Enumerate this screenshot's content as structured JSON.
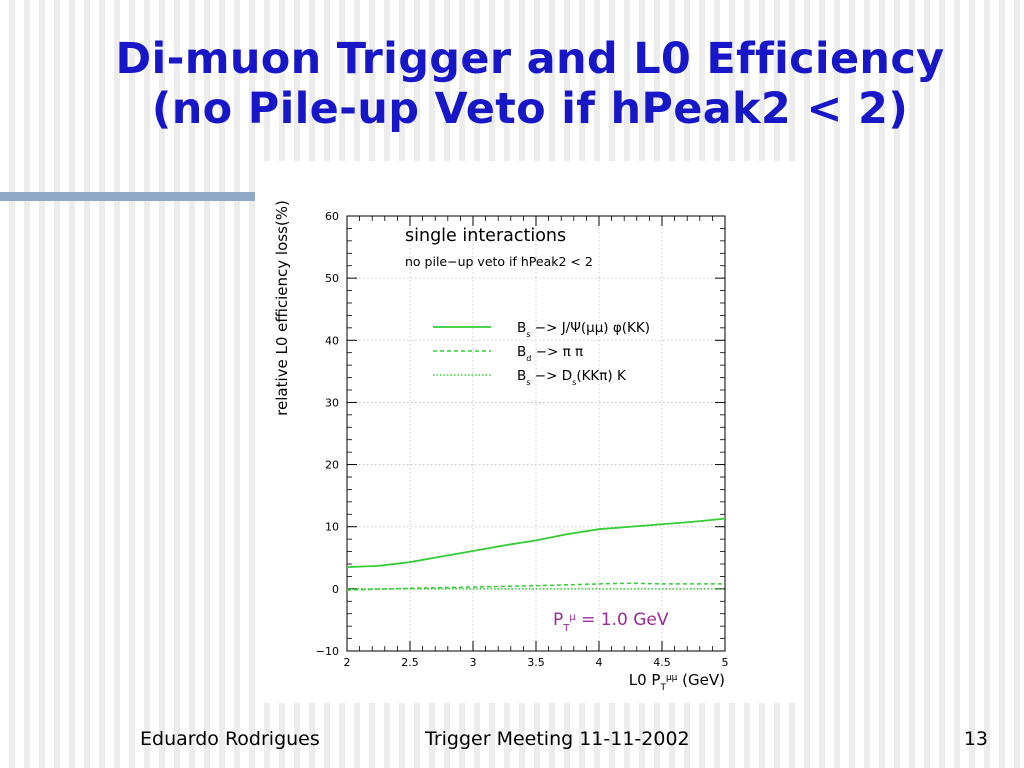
{
  "slide": {
    "title_line1": "Di-muon Trigger and L0 Efficiency",
    "title_line2": "(no Pile-up Veto if hPeak2 < 2)",
    "accent_color": "#1717c8",
    "rule_color": "#8fa8c6"
  },
  "footer": {
    "author": "Eduardo Rodrigues",
    "meeting": "Trigger Meeting 11-11-2002",
    "page": "13"
  },
  "chart_data": {
    "type": "line",
    "title": "single interactions",
    "subtitle": "no pile−up veto if hPeak2 < 2",
    "xlabel": "L0 P_T^μμ (GeV)",
    "ylabel": "relative L0 efficiency loss(%)",
    "annotation": "P_T^μ = 1.0 GeV",
    "annotation_color": "#9a2a9a",
    "xlim": [
      2,
      5
    ],
    "ylim": [
      -10,
      60
    ],
    "x_ticks": [
      2,
      2.5,
      3,
      3.5,
      4,
      4.5,
      5
    ],
    "x_tick_labels": [
      "2",
      "2.5",
      "3",
      "3.5",
      "4",
      "4.5",
      "5"
    ],
    "y_ticks": [
      -10,
      0,
      10,
      20,
      30,
      40,
      50,
      60
    ],
    "y_tick_labels": [
      "−10",
      "0",
      "10",
      "20",
      "30",
      "40",
      "50",
      "60"
    ],
    "grid": true,
    "legend_position": "upper-right",
    "series": [
      {
        "name": "B_s −> J/Ψ(μμ) φ(KK)",
        "color": "#33cc33",
        "style": "solid",
        "x": [
          2.0,
          2.25,
          2.5,
          2.75,
          3.0,
          3.25,
          3.5,
          3.75,
          4.0,
          4.25,
          4.5,
          4.75,
          5.0
        ],
        "y": [
          3.5,
          3.7,
          4.3,
          5.2,
          6.1,
          7.0,
          7.8,
          8.8,
          9.6,
          10.0,
          10.4,
          10.8,
          11.3
        ]
      },
      {
        "name": "B_d −> π π",
        "color": "#33cc33",
        "style": "dashed",
        "x": [
          2.0,
          2.5,
          3.0,
          3.5,
          4.0,
          4.25,
          4.5,
          5.0
        ],
        "y": [
          -0.2,
          0.1,
          0.3,
          0.5,
          0.8,
          0.9,
          0.8,
          0.8
        ]
      },
      {
        "name": "B_s −> D_s(KKπ) K",
        "color": "#33cc33",
        "style": "dotted",
        "x": [
          2.0,
          3.0,
          4.0,
          5.0
        ],
        "y": [
          0.0,
          0.0,
          0.0,
          0.0
        ]
      }
    ]
  }
}
